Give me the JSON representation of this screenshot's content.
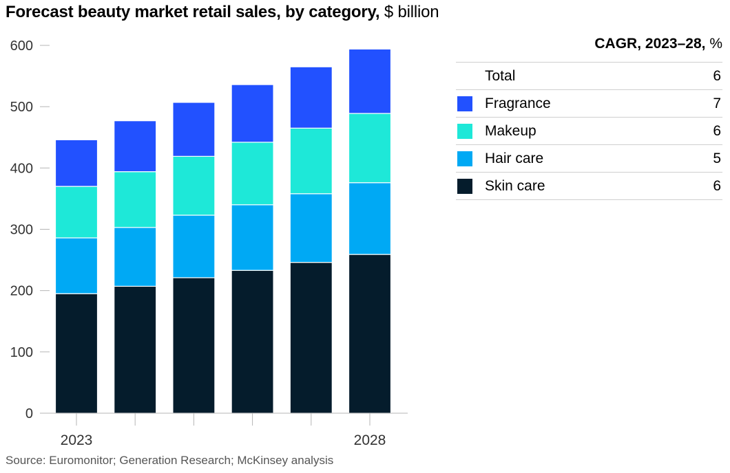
{
  "title": {
    "bold": "Forecast beauty market retail sales, by category,",
    "unit": " $ billion"
  },
  "legend_header": {
    "bold": "CAGR, 2023–28,",
    "unit": " %"
  },
  "legend": [
    {
      "label": "Total",
      "value": "6",
      "color": ""
    },
    {
      "label": "Fragrance",
      "value": "7",
      "color": "#2251ff"
    },
    {
      "label": "Makeup",
      "value": "6",
      "color": "#1ee8d8"
    },
    {
      "label": "Hair care",
      "value": "5",
      "color": "#00a9f4"
    },
    {
      "label": "Skin care",
      "value": "6",
      "color": "#051c2c"
    }
  ],
  "source": "Source: Euromonitor; Generation Research; McKinsey analysis",
  "chart_data": {
    "type": "bar",
    "stacked": true,
    "categories": [
      "2023",
      "",
      "",
      "",
      "",
      "2028"
    ],
    "series": [
      {
        "name": "Skin care",
        "color": "#051c2c",
        "values": [
          195,
          207,
          221,
          233,
          246,
          259
        ]
      },
      {
        "name": "Hair care",
        "color": "#00a9f4",
        "values": [
          91,
          96,
          102,
          107,
          112,
          117
        ]
      },
      {
        "name": "Makeup",
        "color": "#1ee8d8",
        "values": [
          84,
          91,
          96,
          102,
          107,
          113
        ]
      },
      {
        "name": "Fragrance",
        "color": "#2251ff",
        "values": [
          76,
          83,
          88,
          94,
          100,
          105
        ]
      }
    ],
    "yticks": [
      0,
      100,
      200,
      300,
      400,
      500,
      600
    ],
    "ylim": [
      0,
      600
    ],
    "grid": false
  }
}
